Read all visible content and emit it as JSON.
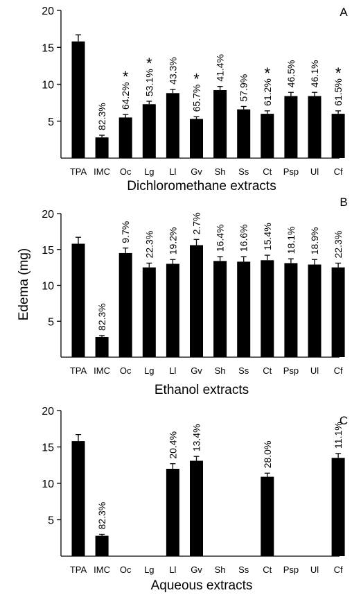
{
  "figure": {
    "ylabel": "Edema (mg)"
  },
  "chart_data": [
    {
      "type": "bar",
      "panel": "A",
      "xlabel": "Dichloromethane extracts",
      "ylim": [
        0,
        20
      ],
      "yticks": [
        5,
        10,
        15,
        20
      ],
      "categories": [
        "TPA",
        "IMC",
        "Oc",
        "Lg",
        "Ll",
        "Gv",
        "Sh",
        "Ss",
        "Ct",
        "Psp",
        "Ul",
        "Cf"
      ],
      "values": [
        15.8,
        2.8,
        5.5,
        7.3,
        8.8,
        5.3,
        9.2,
        6.6,
        6.0,
        8.4,
        8.4,
        6.0
      ],
      "errors": [
        0.9,
        0.3,
        0.4,
        0.4,
        0.5,
        0.3,
        0.5,
        0.4,
        0.4,
        0.5,
        0.5,
        0.4
      ],
      "inhibition": [
        "",
        "82.3%",
        "64.2%",
        "53.1%",
        "43.3%",
        "65.7%",
        "41.4%",
        "57.9%",
        "61.2%",
        "46.5%",
        "46.1%",
        "61.5%"
      ],
      "significant": [
        false,
        false,
        true,
        true,
        false,
        true,
        false,
        false,
        true,
        false,
        false,
        true
      ],
      "star_symbol": "*"
    },
    {
      "type": "bar",
      "panel": "B",
      "xlabel": "Ethanol extracts",
      "ylim": [
        0,
        20
      ],
      "yticks": [
        5,
        10,
        15,
        20
      ],
      "categories": [
        "TPA",
        "IMC",
        "Oc",
        "Lg",
        "Ll",
        "Gv",
        "Sh",
        "Ss",
        "Ct",
        "Psp",
        "Ul",
        "Cf"
      ],
      "values": [
        15.8,
        2.8,
        14.5,
        12.5,
        13.0,
        15.6,
        13.4,
        13.3,
        13.5,
        13.1,
        12.9,
        12.5
      ],
      "errors": [
        0.9,
        0.2,
        0.7,
        0.6,
        0.6,
        0.8,
        0.6,
        0.7,
        0.7,
        0.6,
        0.7,
        0.6
      ],
      "inhibition": [
        "",
        "82.3%",
        "9.7%",
        "22.3%",
        "19.2%",
        "2.7%",
        "16.4%",
        "16.6%",
        "15.4%",
        "18.1%",
        "18.9%",
        "22.3%"
      ],
      "significant": [
        false,
        false,
        false,
        false,
        false,
        false,
        false,
        false,
        false,
        false,
        false,
        false
      ],
      "star_symbol": "*"
    },
    {
      "type": "bar",
      "panel": "C",
      "xlabel": "Aqueous extracts",
      "ylim": [
        0,
        20
      ],
      "yticks": [
        5,
        10,
        15,
        20
      ],
      "categories": [
        "TPA",
        "IMC",
        "Oc",
        "Lg",
        "Ll",
        "Gv",
        "Sh",
        "Ss",
        "Ct",
        "Psp",
        "Ul",
        "Cf"
      ],
      "values": [
        15.8,
        2.8,
        null,
        null,
        12.0,
        13.1,
        null,
        null,
        10.9,
        null,
        null,
        13.5
      ],
      "errors": [
        0.9,
        0.2,
        null,
        null,
        0.7,
        0.6,
        null,
        null,
        0.5,
        null,
        null,
        0.6
      ],
      "inhibition": [
        "",
        "82.3%",
        "",
        "",
        "20.4%",
        "13.4%",
        "",
        "",
        "28.0%",
        "",
        "",
        "11.1%"
      ],
      "significant": [
        false,
        false,
        false,
        false,
        false,
        false,
        false,
        false,
        false,
        false,
        false,
        false
      ],
      "star_symbol": "*"
    }
  ]
}
